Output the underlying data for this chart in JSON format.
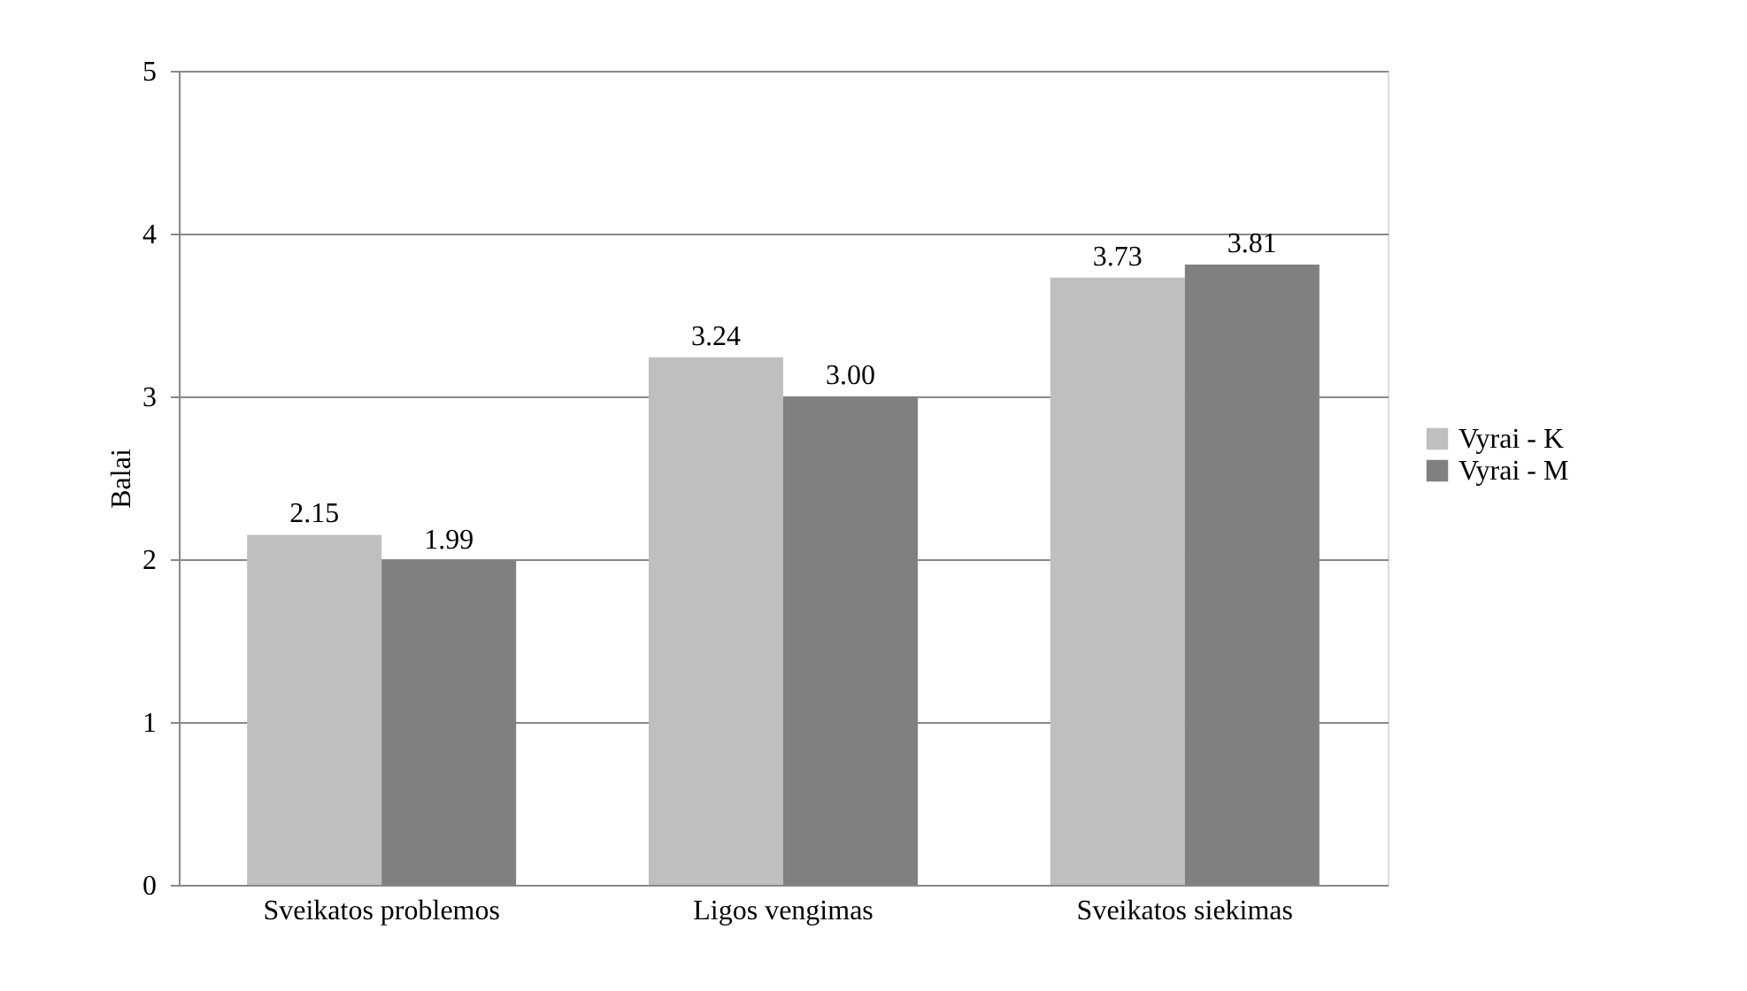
{
  "chart_data": {
    "type": "bar",
    "ylabel": "Balai",
    "categories": [
      "Sveikatos problemos",
      "Ligos vengimas",
      "Sveikatos siekimas"
    ],
    "series": [
      {
        "name": "Vyrai - K",
        "color": "#bfbfbf",
        "values": [
          2.15,
          3.24,
          3.73
        ],
        "value_labels": [
          "2.15",
          "3.24",
          "3.73"
        ]
      },
      {
        "name": "Vyrai - M",
        "color": "#808080",
        "values": [
          1.99,
          3.0,
          3.81
        ],
        "value_labels": [
          "1.99",
          "3.00",
          "3.81"
        ]
      }
    ],
    "ylim": [
      0,
      5
    ],
    "yticks": [
      0,
      1,
      2,
      3,
      4,
      5
    ],
    "grid": "y",
    "legend": "right"
  }
}
